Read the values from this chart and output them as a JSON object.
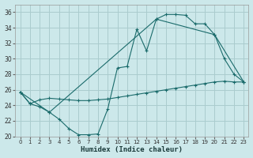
{
  "xlabel": "Humidex (Indice chaleur)",
  "bg_color": "#cce8ea",
  "grid_color": "#aaccce",
  "line_color": "#1a6b6b",
  "xlim": [
    -0.5,
    23.5
  ],
  "ylim": [
    20,
    37
  ],
  "xticks": [
    0,
    1,
    2,
    3,
    4,
    5,
    6,
    7,
    8,
    9,
    10,
    11,
    12,
    13,
    14,
    15,
    16,
    17,
    18,
    19,
    20,
    21,
    22,
    23
  ],
  "yticks": [
    20,
    22,
    24,
    26,
    28,
    30,
    32,
    34,
    36
  ],
  "line1_x": [
    0,
    1,
    2,
    3,
    4,
    5,
    6,
    7,
    8,
    9,
    10,
    11,
    12,
    13,
    14,
    15,
    16,
    17,
    18,
    19,
    20,
    21,
    22,
    23
  ],
  "line1_y": [
    25.7,
    24.2,
    23.8,
    23.1,
    22.2,
    21.0,
    20.2,
    20.2,
    20.3,
    23.5,
    28.8,
    29.0,
    33.8,
    31.0,
    35.1,
    35.7,
    35.7,
    35.6,
    34.5,
    34.5,
    33.1,
    30.0,
    28.0,
    27.0
  ],
  "line2_x": [
    0,
    1,
    2,
    3,
    4,
    5,
    6,
    7,
    8,
    9,
    10,
    11,
    12,
    13,
    14,
    15,
    16,
    17,
    18,
    19,
    20,
    21,
    22,
    23
  ],
  "line2_y": [
    25.7,
    24.2,
    24.7,
    24.9,
    24.8,
    24.7,
    24.6,
    24.6,
    24.7,
    24.8,
    25.0,
    25.2,
    25.4,
    25.6,
    25.8,
    26.0,
    26.2,
    26.4,
    26.6,
    26.8,
    27.0,
    27.1,
    27.0,
    27.0
  ],
  "line3_x": [
    0,
    3,
    14,
    20,
    23
  ],
  "line3_y": [
    25.7,
    23.1,
    35.1,
    33.1,
    27.0
  ],
  "xlabel_fontsize": 6.5,
  "xlabel_color": "#1a3a3a",
  "tick_fontsize": 5.5
}
